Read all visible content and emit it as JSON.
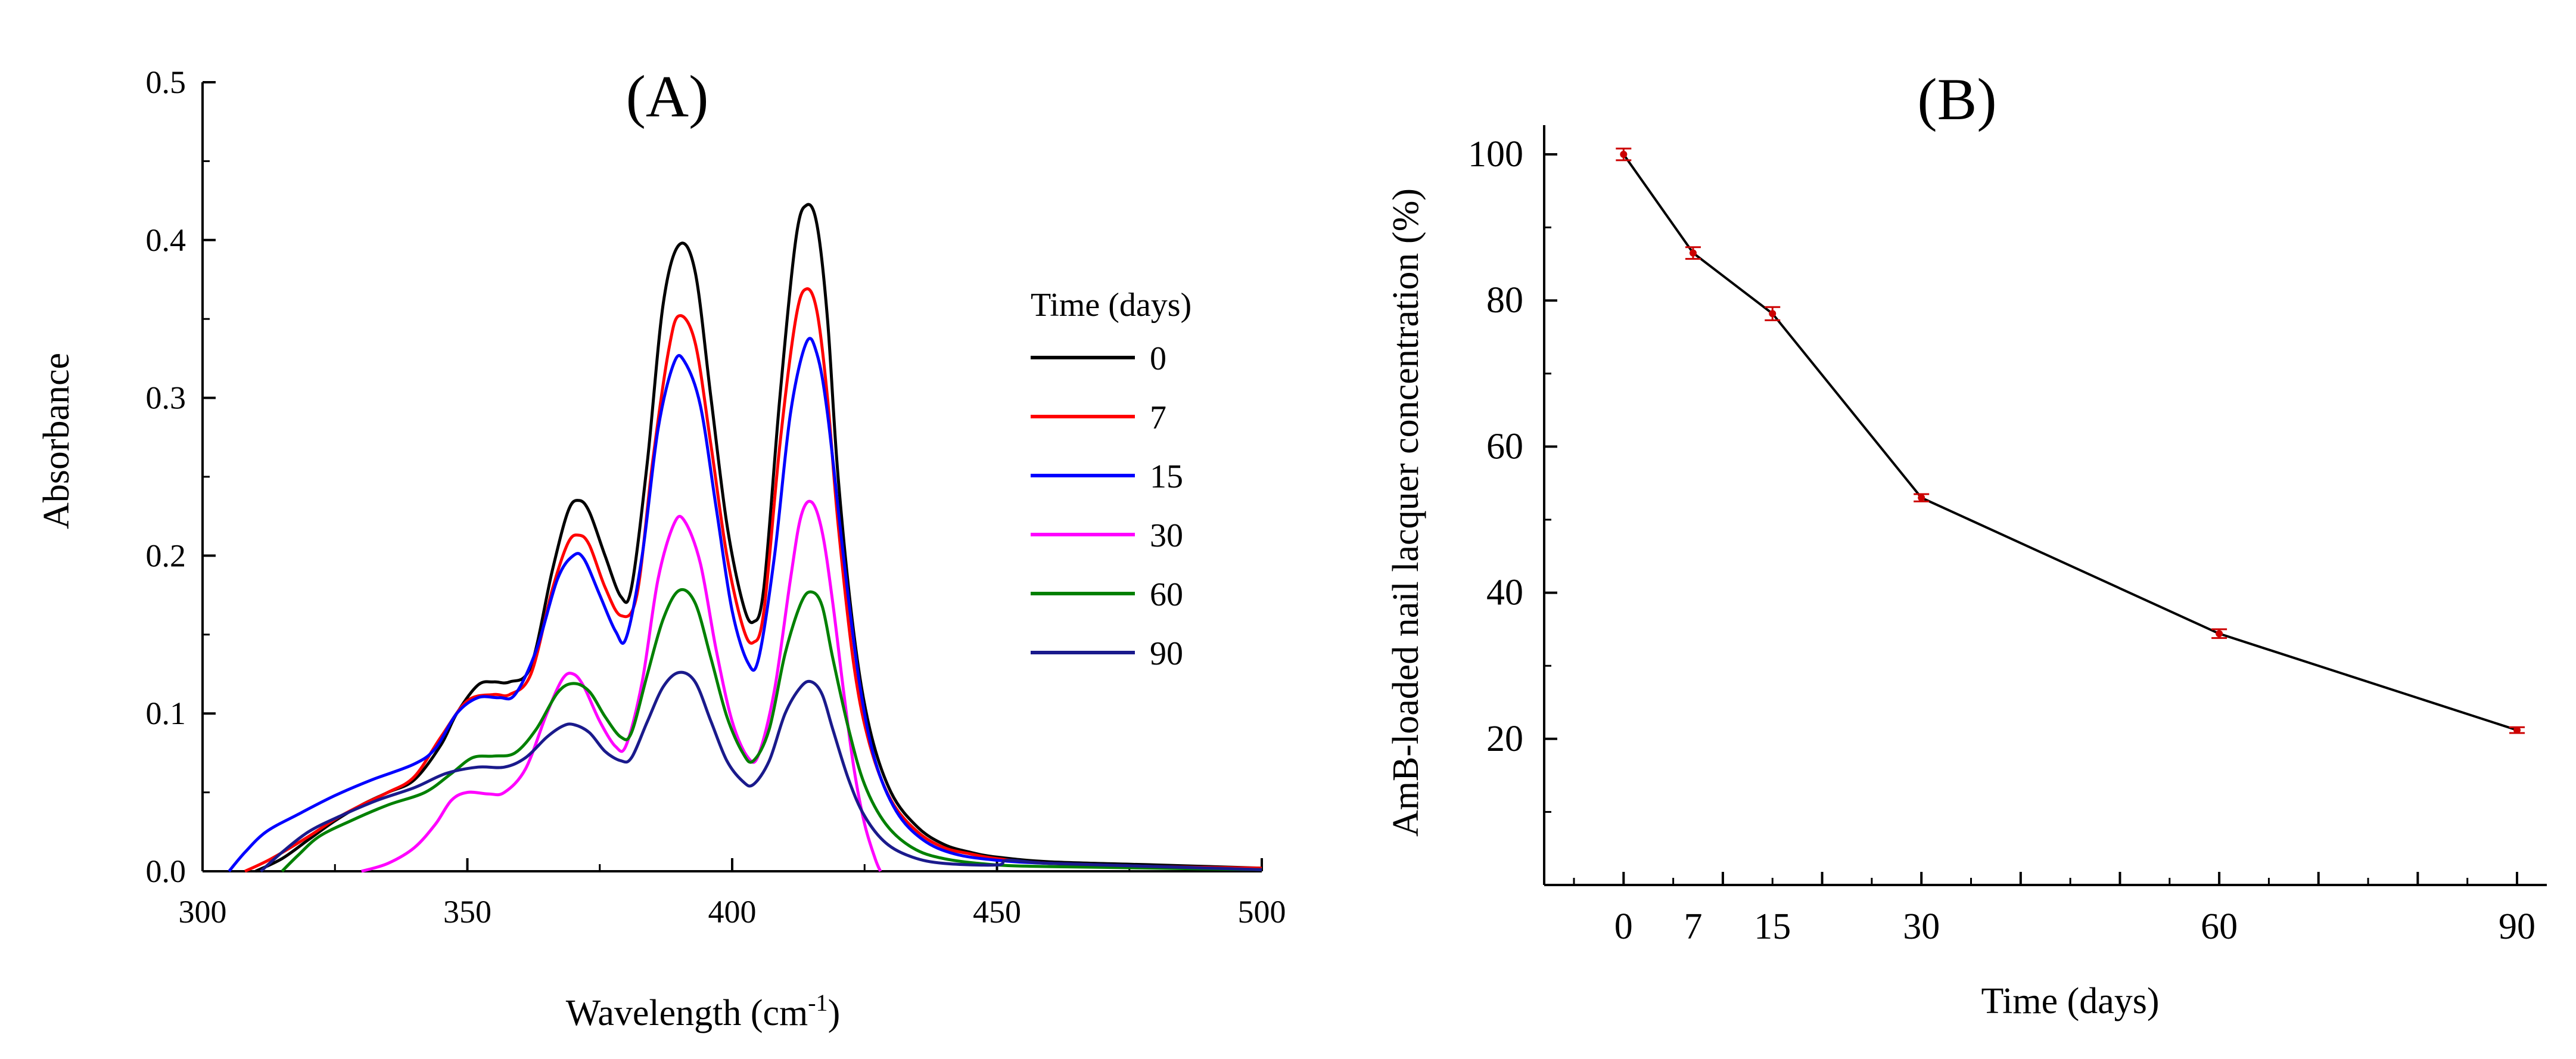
{
  "chart_data": [
    {
      "type": "line",
      "title": "(A)",
      "xlabel": "Wavelength (cm",
      "xlabel_sup": "-1",
      "xlabel_end": ")",
      "ylabel": "Absorbance",
      "xlim": [
        300,
        500
      ],
      "ylim": [
        0,
        0.5
      ],
      "xticks": [
        300,
        350,
        400,
        450,
        500
      ],
      "xtick_labels": [
        "300",
        "350",
        "400",
        "450",
        "500"
      ],
      "yticks": [
        0,
        0.1,
        0.2,
        0.3,
        0.4,
        0.5
      ],
      "ytick_labels": [
        "0.0",
        "0.1",
        "0.2",
        "0.3",
        "0.4",
        "0.5"
      ],
      "legend_title": "Time (days)",
      "legend_position": "right",
      "series": [
        {
          "name": "0",
          "color": "#000000",
          "points": [
            [
              310,
              0
            ],
            [
              315,
              0.008
            ],
            [
              320,
              0.02
            ],
            [
              325,
              0.032
            ],
            [
              330,
              0.042
            ],
            [
              335,
              0.05
            ],
            [
              340,
              0.058
            ],
            [
              345,
              0.08
            ],
            [
              348,
              0.1
            ],
            [
              352,
              0.118
            ],
            [
              355,
              0.12
            ],
            [
              358,
              0.12
            ],
            [
              362,
              0.13
            ],
            [
              366,
              0.19
            ],
            [
              369,
              0.228
            ],
            [
              371,
              0.235
            ],
            [
              373,
              0.228
            ],
            [
              376,
              0.2
            ],
            [
              379,
              0.174
            ],
            [
              381,
              0.18
            ],
            [
              384,
              0.26
            ],
            [
              387,
              0.36
            ],
            [
              390,
              0.397
            ],
            [
              393,
              0.38
            ],
            [
              396,
              0.3
            ],
            [
              399,
              0.22
            ],
            [
              402,
              0.17
            ],
            [
              404,
              0.158
            ],
            [
              406,
              0.18
            ],
            [
              409,
              0.3
            ],
            [
              412,
              0.4
            ],
            [
              414,
              0.422
            ],
            [
              416,
              0.41
            ],
            [
              418,
              0.35
            ],
            [
              420,
              0.25
            ],
            [
              423,
              0.15
            ],
            [
              426,
              0.09
            ],
            [
              430,
              0.05
            ],
            [
              435,
              0.028
            ],
            [
              440,
              0.017
            ],
            [
              445,
              0.012
            ],
            [
              450,
              0.009
            ],
            [
              460,
              0.006
            ],
            [
              480,
              0.004
            ],
            [
              500,
              0.002
            ]
          ]
        },
        {
          "name": "7",
          "color": "#ff0000",
          "points": [
            [
              308,
              0
            ],
            [
              313,
              0.008
            ],
            [
              320,
              0.022
            ],
            [
              325,
              0.033
            ],
            [
              330,
              0.042
            ],
            [
              335,
              0.05
            ],
            [
              340,
              0.06
            ],
            [
              345,
              0.085
            ],
            [
              350,
              0.108
            ],
            [
              355,
              0.112
            ],
            [
              358,
              0.112
            ],
            [
              362,
              0.125
            ],
            [
              366,
              0.178
            ],
            [
              369,
              0.208
            ],
            [
              371,
              0.213
            ],
            [
              373,
              0.207
            ],
            [
              376,
              0.18
            ],
            [
              379,
              0.162
            ],
            [
              382,
              0.175
            ],
            [
              385,
              0.26
            ],
            [
              388,
              0.33
            ],
            [
              390,
              0.352
            ],
            [
              393,
              0.335
            ],
            [
              396,
              0.27
            ],
            [
              399,
              0.2
            ],
            [
              402,
              0.155
            ],
            [
              404,
              0.145
            ],
            [
              406,
              0.165
            ],
            [
              409,
              0.27
            ],
            [
              412,
              0.35
            ],
            [
              414,
              0.369
            ],
            [
              416,
              0.355
            ],
            [
              418,
              0.3
            ],
            [
              420,
              0.22
            ],
            [
              423,
              0.13
            ],
            [
              426,
              0.08
            ],
            [
              430,
              0.045
            ],
            [
              435,
              0.025
            ],
            [
              440,
              0.015
            ],
            [
              445,
              0.011
            ],
            [
              450,
              0.008
            ],
            [
              460,
              0.005
            ],
            [
              480,
              0.003
            ],
            [
              500,
              0.002
            ]
          ]
        },
        {
          "name": "15",
          "color": "#0000ff",
          "points": [
            [
              305,
              0
            ],
            [
              308,
              0.012
            ],
            [
              312,
              0.025
            ],
            [
              318,
              0.036
            ],
            [
              325,
              0.048
            ],
            [
              332,
              0.058
            ],
            [
              340,
              0.068
            ],
            [
              344,
              0.078
            ],
            [
              348,
              0.1
            ],
            [
              352,
              0.11
            ],
            [
              356,
              0.11
            ],
            [
              359,
              0.112
            ],
            [
              363,
              0.14
            ],
            [
              367,
              0.185
            ],
            [
              370,
              0.2
            ],
            [
              372,
              0.198
            ],
            [
              375,
              0.175
            ],
            [
              378,
              0.152
            ],
            [
              380,
              0.148
            ],
            [
              383,
              0.2
            ],
            [
              386,
              0.28
            ],
            [
              389,
              0.322
            ],
            [
              391,
              0.323
            ],
            [
              394,
              0.295
            ],
            [
              397,
              0.23
            ],
            [
              400,
              0.165
            ],
            [
              403,
              0.132
            ],
            [
              405,
              0.135
            ],
            [
              408,
              0.2
            ],
            [
              411,
              0.29
            ],
            [
              414,
              0.335
            ],
            [
              416,
              0.328
            ],
            [
              418,
              0.29
            ],
            [
              421,
              0.2
            ],
            [
              424,
              0.12
            ],
            [
              427,
              0.07
            ],
            [
              431,
              0.038
            ],
            [
              436,
              0.02
            ],
            [
              442,
              0.011
            ],
            [
              450,
              0.007
            ],
            [
              460,
              0.005
            ],
            [
              480,
              0.003
            ],
            [
              500,
              0.001
            ]
          ]
        },
        {
          "name": "30",
          "color": "#ff00ff",
          "points": [
            [
              330,
              0
            ],
            [
              335,
              0.005
            ],
            [
              340,
              0.015
            ],
            [
              344,
              0.03
            ],
            [
              347,
              0.045
            ],
            [
              350,
              0.05
            ],
            [
              354,
              0.049
            ],
            [
              357,
              0.05
            ],
            [
              361,
              0.065
            ],
            [
              365,
              0.1
            ],
            [
              368,
              0.122
            ],
            [
              370,
              0.125
            ],
            [
              372,
              0.117
            ],
            [
              375,
              0.095
            ],
            [
              378,
              0.079
            ],
            [
              380,
              0.08
            ],
            [
              383,
              0.12
            ],
            [
              386,
              0.185
            ],
            [
              389,
              0.22
            ],
            [
              391,
              0.222
            ],
            [
              394,
              0.195
            ],
            [
              397,
              0.14
            ],
            [
              400,
              0.095
            ],
            [
              403,
              0.072
            ],
            [
              405,
              0.074
            ],
            [
              408,
              0.115
            ],
            [
              411,
              0.185
            ],
            [
              413,
              0.225
            ],
            [
              415,
              0.234
            ],
            [
              417,
              0.215
            ],
            [
              419,
              0.17
            ],
            [
              421,
              0.115
            ],
            [
              423,
              0.065
            ],
            [
              425,
              0.03
            ],
            [
              427,
              0.008
            ],
            [
              428,
              0
            ]
          ]
        },
        {
          "name": "60",
          "color": "#008000",
          "points": [
            [
              315,
              0
            ],
            [
              318,
              0.01
            ],
            [
              322,
              0.022
            ],
            [
              328,
              0.032
            ],
            [
              335,
              0.042
            ],
            [
              342,
              0.05
            ],
            [
              347,
              0.062
            ],
            [
              351,
              0.072
            ],
            [
              355,
              0.073
            ],
            [
              359,
              0.075
            ],
            [
              363,
              0.09
            ],
            [
              367,
              0.113
            ],
            [
              370,
              0.119
            ],
            [
              373,
              0.114
            ],
            [
              376,
              0.098
            ],
            [
              379,
              0.085
            ],
            [
              381,
              0.088
            ],
            [
              384,
              0.125
            ],
            [
              387,
              0.16
            ],
            [
              390,
              0.178
            ],
            [
              393,
              0.17
            ],
            [
              396,
              0.135
            ],
            [
              399,
              0.098
            ],
            [
              402,
              0.075
            ],
            [
              404,
              0.07
            ],
            [
              407,
              0.09
            ],
            [
              410,
              0.138
            ],
            [
              413,
              0.17
            ],
            [
              415,
              0.177
            ],
            [
              417,
              0.168
            ],
            [
              419,
              0.135
            ],
            [
              422,
              0.09
            ],
            [
              425,
              0.055
            ],
            [
              429,
              0.03
            ],
            [
              434,
              0.015
            ],
            [
              440,
              0.008
            ],
            [
              450,
              0.004
            ],
            [
              460,
              0.003
            ],
            [
              480,
              0.002
            ],
            [
              500,
              0.001
            ]
          ]
        },
        {
          "name": "90",
          "color": "#1a1a8c",
          "points": [
            [
              311,
              0
            ],
            [
              315,
              0.012
            ],
            [
              320,
              0.025
            ],
            [
              326,
              0.035
            ],
            [
              333,
              0.045
            ],
            [
              340,
              0.053
            ],
            [
              346,
              0.062
            ],
            [
              352,
              0.066
            ],
            [
              357,
              0.066
            ],
            [
              361,
              0.072
            ],
            [
              365,
              0.085
            ],
            [
              368,
              0.092
            ],
            [
              370,
              0.093
            ],
            [
              373,
              0.088
            ],
            [
              376,
              0.076
            ],
            [
              379,
              0.07
            ],
            [
              381,
              0.072
            ],
            [
              384,
              0.095
            ],
            [
              387,
              0.117
            ],
            [
              390,
              0.126
            ],
            [
              393,
              0.12
            ],
            [
              396,
              0.095
            ],
            [
              399,
              0.07
            ],
            [
              402,
              0.057
            ],
            [
              404,
              0.055
            ],
            [
              407,
              0.07
            ],
            [
              410,
              0.1
            ],
            [
              413,
              0.117
            ],
            [
              415,
              0.12
            ],
            [
              417,
              0.112
            ],
            [
              419,
              0.09
            ],
            [
              422,
              0.058
            ],
            [
              425,
              0.035
            ],
            [
              429,
              0.018
            ],
            [
              434,
              0.009
            ],
            [
              440,
              0.005
            ],
            [
              450,
              0.004
            ],
            [
              452,
              0.007
            ],
            [
              460,
              0.005
            ],
            [
              480,
              0.003
            ],
            [
              500,
              0.001
            ]
          ]
        }
      ]
    },
    {
      "type": "line",
      "title": "(B)",
      "xlabel": "Time (days)",
      "ylabel": "AmB-loaded nail lacquer concentration (%)",
      "xlim": [
        -8,
        93
      ],
      "ylim": [
        0,
        104
      ],
      "xticks": [
        0,
        7,
        15,
        30,
        60,
        90
      ],
      "xtick_labels": [
        "0",
        "7",
        "15",
        "30",
        "60",
        "90"
      ],
      "yticks": [
        20,
        40,
        60,
        80,
        100
      ],
      "ytick_labels": [
        "20",
        "40",
        "60",
        "80",
        "100"
      ],
      "series": [
        {
          "name": "AmB-loaded nail lacquer",
          "line_color": "#000000",
          "marker_color": "#cc0000",
          "x": [
            0,
            7,
            15,
            30,
            60,
            90
          ],
          "y": [
            100,
            86.5,
            78.2,
            53,
            34.4,
            21.2
          ],
          "err": [
            0.8,
            0.8,
            0.9,
            0.5,
            0.6,
            0.4
          ]
        }
      ]
    }
  ]
}
